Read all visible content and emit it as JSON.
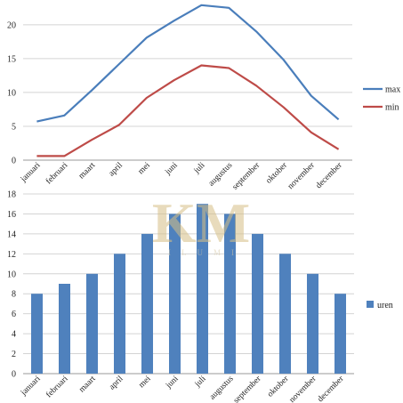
{
  "watermark": {
    "monogram": "KM",
    "text": "ILUMI",
    "color": "#d7bf86"
  },
  "chart_data": [
    {
      "type": "line",
      "categories": [
        "januari",
        "februari",
        "maart",
        "april",
        "mei",
        "juni",
        "juli",
        "augustus",
        "september",
        "oktober",
        "november",
        "december"
      ],
      "yticks": [
        0,
        5,
        10,
        15,
        20
      ],
      "ylim": [
        0,
        23
      ],
      "grid": true,
      "legend_position": "right",
      "series": [
        {
          "name": "max",
          "color": "#4a7ebb",
          "values": [
            5.7,
            6.6,
            10.3,
            14.2,
            18.1,
            20.6,
            22.9,
            22.5,
            19.0,
            14.8,
            9.5,
            6.0
          ]
        },
        {
          "name": "min",
          "color": "#be4b48",
          "values": [
            0.6,
            0.6,
            3.0,
            5.2,
            9.2,
            11.8,
            14.0,
            13.6,
            11.0,
            7.8,
            4.1,
            1.6
          ]
        }
      ]
    },
    {
      "type": "bar",
      "categories": [
        "januari",
        "februari",
        "maart",
        "april",
        "mei",
        "juni",
        "juli",
        "augustus",
        "september",
        "oktober",
        "november",
        "december"
      ],
      "yticks": [
        0,
        2,
        4,
        6,
        8,
        10,
        12,
        14,
        16,
        18
      ],
      "ylim": [
        0,
        18
      ],
      "grid": true,
      "legend_position": "right",
      "series": [
        {
          "name": "uren",
          "color": "#4f81bd",
          "values": [
            8,
            9,
            10,
            12,
            14,
            16,
            17,
            16,
            14,
            12,
            10,
            8
          ]
        }
      ]
    }
  ]
}
